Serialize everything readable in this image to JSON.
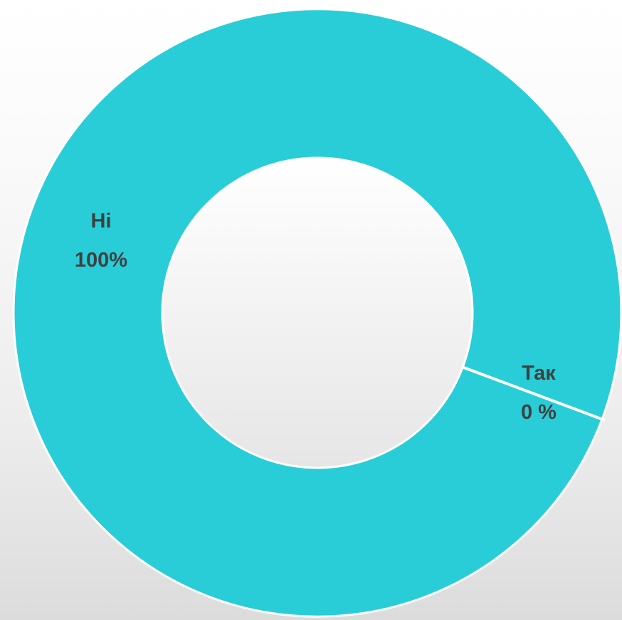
{
  "chart_data": {
    "type": "pie",
    "style": "donut",
    "slices": [
      {
        "label": "Ні",
        "value": 100,
        "value_label": "100%",
        "color": "#29CDD7"
      },
      {
        "label": "Так",
        "value": 0,
        "value_label": "0 %",
        "color": "#29CDD7"
      }
    ],
    "title": "",
    "legend": "none",
    "separator_color": "#FFFFFF"
  }
}
